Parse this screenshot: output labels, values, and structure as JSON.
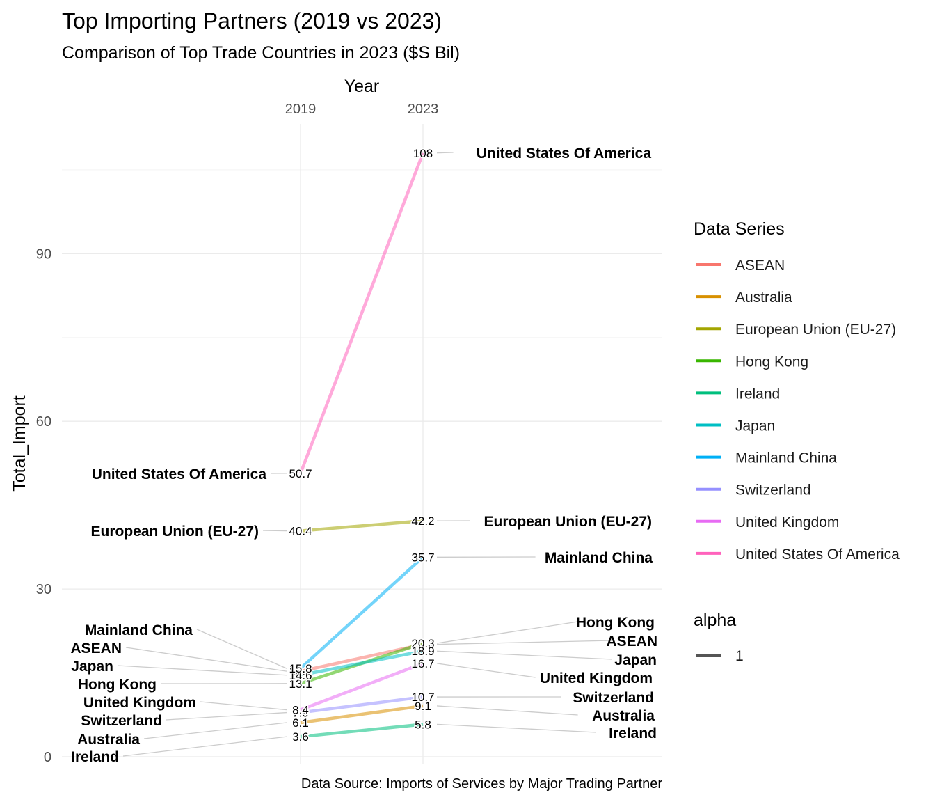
{
  "chart_data": {
    "type": "line",
    "title": "Top Importing Partners (2019 vs 2023)",
    "subtitle": "Comparison of Top Trade Countries in 2023 ($S Bil)",
    "xlabel": "Year",
    "ylabel": "Total_Import",
    "caption": "Data Source: Imports of Services by Major Trading Partner",
    "x": [
      "2019",
      "2023"
    ],
    "ylim": [
      0,
      112
    ],
    "yticks": [
      0,
      30,
      60,
      90
    ],
    "grid": true,
    "legend_position": "right",
    "legend_title": "Data Series",
    "alpha_legend": {
      "title": "alpha",
      "label": "1"
    },
    "series": [
      {
        "name": "ASEAN",
        "color": "#F8766D",
        "values": [
          15.3,
          20.1
        ],
        "labels": [
          "15.3",
          "20.1"
        ]
      },
      {
        "name": "Australia",
        "color": "#D89000",
        "values": [
          6.1,
          9.1
        ],
        "labels": [
          "6.1",
          "9.1"
        ]
      },
      {
        "name": "European Union (EU-27)",
        "color": "#A3A500",
        "values": [
          40.4,
          42.2
        ],
        "labels": [
          "40.4",
          "42.2"
        ]
      },
      {
        "name": "Hong Kong",
        "color": "#39B600",
        "values": [
          13.1,
          20.3
        ],
        "labels": [
          "13.1",
          "20.3"
        ]
      },
      {
        "name": "Ireland",
        "color": "#00BF7D",
        "values": [
          3.6,
          5.8
        ],
        "labels": [
          "3.6",
          "5.8"
        ]
      },
      {
        "name": "Japan",
        "color": "#00BFC4",
        "values": [
          14.6,
          18.9
        ],
        "labels": [
          "14.6",
          "18.9"
        ]
      },
      {
        "name": "Mainland China",
        "color": "#00B0F6",
        "values": [
          15.8,
          35.7
        ],
        "labels": [
          "15.8",
          "35.7"
        ]
      },
      {
        "name": "Switzerland",
        "color": "#9590FF",
        "values": [
          7.9,
          10.7
        ],
        "labels": [
          "7.9",
          "10.7"
        ]
      },
      {
        "name": "United Kingdom",
        "color": "#E76BF3",
        "values": [
          8.4,
          16.7
        ],
        "labels": [
          "8.4",
          "16.7"
        ]
      },
      {
        "name": "United States Of America",
        "color": "#FF62BC",
        "values": [
          50.7,
          108
        ],
        "labels": [
          "50.7",
          "108"
        ]
      }
    ]
  }
}
